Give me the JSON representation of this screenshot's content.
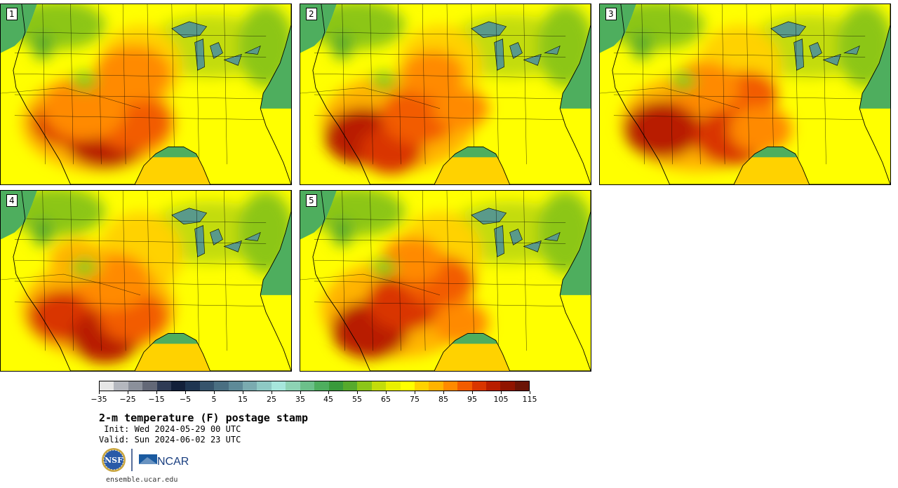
{
  "panels": [
    {
      "label": "1",
      "variant": 0
    },
    {
      "label": "2",
      "variant": 1
    },
    {
      "label": "3",
      "variant": 2
    },
    {
      "label": "4",
      "variant": 3
    },
    {
      "label": "5",
      "variant": 4
    }
  ],
  "colorbar": {
    "colors": [
      "#e6e6e6",
      "#b4b7be",
      "#8b909b",
      "#636877",
      "#2f3b55",
      "#13203a",
      "#1f3551",
      "#36546c",
      "#4a6f82",
      "#5e8a98",
      "#7aabb0",
      "#8ec9c4",
      "#a6e6dc",
      "#8dd3b4",
      "#6cc08a",
      "#4eae5e",
      "#399a3b",
      "#56aa2c",
      "#8cc618",
      "#c3dc0a",
      "#e9f000",
      "#ffff00",
      "#ffd200",
      "#ffb300",
      "#ff8a00",
      "#f25c00",
      "#d93500",
      "#b81e00",
      "#901400",
      "#6b1406"
    ],
    "tick_labels": [
      "−35",
      "−25",
      "−15",
      "−5",
      "5",
      "15",
      "25",
      "35",
      "45",
      "55",
      "65",
      "75",
      "85",
      "95",
      "105",
      "115"
    ]
  },
  "title": "2-m temperature (F) postage stamp",
  "init": " Init: Wed 2024-05-29 00 UTC",
  "valid": "Valid: Sun 2024-06-02 23 UTC",
  "logos": {
    "nsf": "NSF",
    "ncar": "NCAR"
  },
  "site": "ensemble.ucar.edu"
}
